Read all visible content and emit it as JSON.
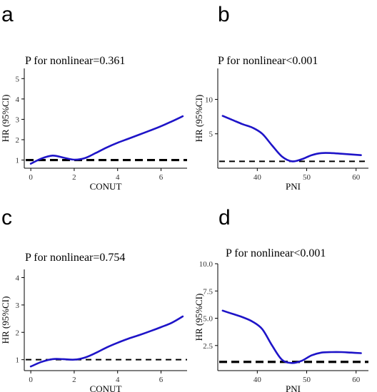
{
  "chart_data": [
    {
      "type": "line",
      "panel": "a",
      "annotation": "P for nonlinear=0.361",
      "xlabel": "CONUT",
      "ylabel": "HR (95%CI)",
      "xlim": [
        -0.3,
        7.2
      ],
      "ylim": [
        0.6,
        5.5
      ],
      "xticks": [
        0,
        2,
        4,
        6
      ],
      "yticks": [
        1,
        2,
        3,
        4,
        5
      ],
      "reference_line": 1,
      "ref_style": "thick",
      "series": [
        {
          "x": [
            0,
            0.5,
            1.0,
            1.5,
            2.0,
            2.5,
            3.0,
            3.5,
            4.0,
            4.5,
            5.0,
            5.5,
            6.0,
            6.5,
            7.0
          ],
          "y": [
            0.82,
            1.08,
            1.22,
            1.12,
            1.02,
            1.1,
            1.35,
            1.62,
            1.85,
            2.05,
            2.25,
            2.45,
            2.66,
            2.9,
            3.15
          ]
        }
      ]
    },
    {
      "type": "line",
      "panel": "b",
      "annotation": "P for nonlinear<0.001",
      "xlabel": "PNI",
      "ylabel": "HR (95%CI)",
      "xlim": [
        32,
        62.5
      ],
      "ylim": [
        0,
        14.5
      ],
      "xticks": [
        40,
        50,
        60
      ],
      "yticks": [
        5,
        10
      ],
      "reference_line": 1,
      "ref_style": "normal",
      "series": [
        {
          "x": [
            33,
            35,
            37,
            39,
            41,
            43,
            45,
            47,
            49,
            51,
            53,
            55,
            57,
            59,
            61
          ],
          "y": [
            7.6,
            7.0,
            6.4,
            5.9,
            5.0,
            3.3,
            1.7,
            1.0,
            1.3,
            1.9,
            2.2,
            2.2,
            2.1,
            2.0,
            1.9
          ]
        }
      ]
    },
    {
      "type": "line",
      "panel": "c",
      "annotation": "P for nonlinear=0.754",
      "xlabel": "CONUT",
      "ylabel": "HR (95%CI)",
      "xlim": [
        -0.3,
        7.2
      ],
      "ylim": [
        0.6,
        4.3
      ],
      "xticks": [
        0,
        2,
        4,
        6
      ],
      "yticks": [
        1,
        2,
        3,
        4
      ],
      "reference_line": 1,
      "ref_style": "normal",
      "series": [
        {
          "x": [
            0,
            0.5,
            1.0,
            1.5,
            2.0,
            2.5,
            3.0,
            3.5,
            4.0,
            4.5,
            5.0,
            5.5,
            6.0,
            6.5,
            7.0
          ],
          "y": [
            0.75,
            0.92,
            1.02,
            1.02,
            1.0,
            1.08,
            1.25,
            1.45,
            1.62,
            1.77,
            1.9,
            2.04,
            2.19,
            2.35,
            2.58
          ]
        }
      ]
    },
    {
      "type": "line",
      "panel": "d",
      "annotation": "P for nonlinear<0.001",
      "xlabel": "PNI",
      "ylabel": "HR (95%CI)",
      "xlim": [
        32,
        62.5
      ],
      "ylim": [
        0.2,
        10.0
      ],
      "xticks": [
        40,
        50,
        60
      ],
      "yticks": [
        2.5,
        5.0,
        7.5,
        10.0
      ],
      "ytick_format": "fixed1",
      "reference_line": 1,
      "ref_style": "thick",
      "series": [
        {
          "x": [
            33,
            35,
            37,
            39,
            41,
            43,
            45,
            47,
            49,
            51,
            53,
            55,
            57,
            59,
            61
          ],
          "y": [
            5.7,
            5.4,
            5.1,
            4.7,
            4.0,
            2.5,
            1.2,
            0.9,
            1.1,
            1.6,
            1.85,
            1.9,
            1.9,
            1.85,
            1.8
          ]
        }
      ]
    }
  ]
}
